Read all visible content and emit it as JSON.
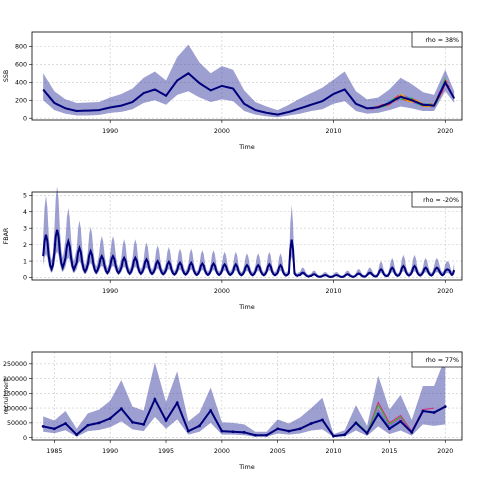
{
  "chart_data": [
    {
      "type": "line",
      "ylabel": "SSB",
      "xlabel": "Time",
      "xlim": [
        1983,
        2021.5
      ],
      "ylim": [
        -20,
        960
      ],
      "x_ticks": [
        1990,
        2000,
        2010,
        2020
      ],
      "y_ticks": [
        0,
        200,
        400,
        600,
        800
      ],
      "grid": true,
      "annotation": "rho = 38%",
      "annotation_position": "top-right",
      "band_color": "#3b3fa3",
      "line_color": "#00007a",
      "peel_colors": [
        "#e0287a",
        "#ff2020",
        "#22bb22",
        "#2aa5d6",
        "#cc44cc",
        "#d6c400",
        "#ff8800"
      ],
      "series": [
        {
          "x": [
            1984,
            1985,
            1986,
            1987,
            1988,
            1989,
            1990,
            1991,
            1992,
            1993,
            1994,
            1995,
            1996,
            1997,
            1998,
            1999,
            2000,
            2001,
            2002,
            2003,
            2004,
            2005,
            2006,
            2007,
            2008,
            2009,
            2010,
            2011,
            2012,
            2013,
            2014,
            2015,
            2016,
            2017,
            2018,
            2019,
            2020,
            2020.8
          ],
          "values": [
            320,
            170,
            110,
            80,
            85,
            90,
            120,
            140,
            180,
            280,
            320,
            250,
            420,
            500,
            390,
            310,
            360,
            330,
            160,
            90,
            60,
            40,
            70,
            110,
            150,
            190,
            270,
            320,
            160,
            110,
            120,
            170,
            240,
            200,
            150,
            140,
            400,
            220
          ],
          "upper": [
            500,
            300,
            210,
            170,
            175,
            180,
            230,
            270,
            330,
            450,
            520,
            420,
            680,
            820,
            620,
            500,
            580,
            540,
            310,
            180,
            130,
            90,
            150,
            220,
            280,
            340,
            430,
            520,
            300,
            210,
            230,
            320,
            450,
            380,
            290,
            260,
            540,
            300
          ],
          "lower": [
            200,
            90,
            50,
            30,
            30,
            35,
            60,
            70,
            100,
            170,
            200,
            150,
            260,
            300,
            230,
            180,
            210,
            190,
            80,
            40,
            20,
            10,
            30,
            50,
            80,
            100,
            160,
            190,
            80,
            50,
            60,
            90,
            130,
            110,
            80,
            80,
            300,
            170
          ]
        }
      ]
    },
    {
      "type": "line",
      "ylabel": "FBAR",
      "xlabel": "Time",
      "xlim": [
        1983,
        2021.5
      ],
      "ylim": [
        -0.15,
        5.2
      ],
      "x_ticks": [
        1990,
        2000,
        2010,
        2020
      ],
      "y_ticks": [
        0,
        1,
        2,
        3,
        4,
        5
      ],
      "grid": true,
      "annotation": "rho = -20%",
      "annotation_position": "top-right",
      "band_color": "#3b3fa3",
      "line_color": "#00007a",
      "series": [
        {
          "x": [
            1984,
            1985,
            1986,
            1987,
            1988,
            1989,
            1990,
            1991,
            1992,
            1993,
            1994,
            1995,
            1996,
            1997,
            1998,
            1999,
            2000,
            2001,
            2002,
            2003,
            2004,
            2005,
            2006,
            2007,
            2008,
            2009,
            2010,
            2011,
            2012,
            2013,
            2014,
            2015,
            2016,
            2017,
            2018,
            2019,
            2020,
            2020.8
          ],
          "values": [
            1.3,
            1.5,
            1.2,
            0.9,
            0.8,
            0.7,
            0.7,
            0.6,
            0.6,
            0.55,
            0.5,
            0.45,
            0.45,
            0.4,
            0.4,
            0.4,
            0.4,
            0.35,
            0.35,
            0.35,
            0.35,
            0.3,
            0.25,
            0.15,
            0.1,
            0.08,
            0.08,
            0.1,
            0.12,
            0.15,
            0.2,
            0.25,
            0.3,
            0.3,
            0.3,
            0.35,
            0.4,
            0.45
          ],
          "peak": [
            2.6,
            2.9,
            2.2,
            1.8,
            1.6,
            1.3,
            1.3,
            1.2,
            1.2,
            1.1,
            1.0,
            0.95,
            0.9,
            0.9,
            0.85,
            0.85,
            0.8,
            0.8,
            0.75,
            0.75,
            0.8,
            0.75,
            2.3,
            0.3,
            0.2,
            0.15,
            0.15,
            0.2,
            0.25,
            0.3,
            0.5,
            0.6,
            0.7,
            0.7,
            0.6,
            0.6,
            0.5,
            0.55
          ]
        }
      ]
    },
    {
      "type": "line",
      "ylabel": "recruitment",
      "xlabel": "Time",
      "xlim": [
        1983,
        2021.5
      ],
      "ylim": [
        -8000,
        290000
      ],
      "x_ticks": [
        1985,
        1990,
        1995,
        2000,
        2005,
        2010,
        2015,
        2020
      ],
      "y_ticks": [
        0,
        50000,
        100000,
        150000,
        200000,
        250000
      ],
      "grid": true,
      "annotation": "rho = 77%",
      "annotation_position": "top-right",
      "band_color": "#3b3fa3",
      "line_color": "#00007a",
      "series": [
        {
          "x": [
            1984,
            1985,
            1986,
            1987,
            1988,
            1989,
            1990,
            1991,
            1992,
            1993,
            1994,
            1995,
            1996,
            1997,
            1998,
            1999,
            2000,
            2001,
            2002,
            2003,
            2004,
            2005,
            2006,
            2007,
            2008,
            2009,
            2010,
            2011,
            2012,
            2013,
            2014,
            2015,
            2016,
            2017,
            2018,
            2019,
            2020
          ],
          "values": [
            38000,
            30000,
            48000,
            10000,
            42000,
            50000,
            65000,
            98000,
            52000,
            45000,
            130000,
            58000,
            118000,
            22000,
            40000,
            92000,
            22000,
            20000,
            18000,
            8000,
            8000,
            30000,
            22000,
            30000,
            48000,
            60000,
            5000,
            10000,
            50000,
            15000,
            80000,
            30000,
            55000,
            18000,
            90000,
            85000,
            105000
          ],
          "upper": [
            72000,
            58000,
            90000,
            30000,
            82000,
            95000,
            125000,
            195000,
            105000,
            92000,
            255000,
            120000,
            225000,
            55000,
            85000,
            170000,
            52000,
            50000,
            45000,
            20000,
            20000,
            62000,
            48000,
            68000,
            100000,
            135000,
            12000,
            25000,
            110000,
            40000,
            210000,
            95000,
            145000,
            60000,
            175000,
            175000,
            270000
          ],
          "lower": [
            20000,
            15000,
            25000,
            3000,
            22000,
            26000,
            35000,
            55000,
            28000,
            22000,
            70000,
            30000,
            62000,
            10000,
            20000,
            50000,
            10000,
            10000,
            8000,
            3000,
            3000,
            14000,
            10000,
            14000,
            24000,
            28000,
            2000,
            4000,
            24000,
            6000,
            38000,
            12000,
            24000,
            7000,
            45000,
            40000,
            45000
          ]
        }
      ],
      "peels": [
        {
          "x": [
            2012,
            2013,
            2014,
            2015,
            2016,
            2017,
            2018,
            2019
          ],
          "values": [
            52000,
            16000,
            120000,
            50000,
            75000,
            22000,
            95000,
            100000
          ]
        },
        {
          "x": [
            2012,
            2013,
            2014,
            2015,
            2016,
            2017,
            2018
          ],
          "values": [
            55000,
            17000,
            110000,
            45000,
            70000,
            20000,
            88000
          ]
        },
        {
          "x": [
            2012,
            2013,
            2014,
            2015,
            2016,
            2017
          ],
          "values": [
            50000,
            15000,
            95000,
            40000,
            65000,
            21000
          ]
        },
        {
          "x": [
            2012,
            2013,
            2014,
            2015,
            2016
          ],
          "values": [
            48000,
            14000,
            90000,
            35000,
            60000
          ]
        }
      ]
    }
  ]
}
